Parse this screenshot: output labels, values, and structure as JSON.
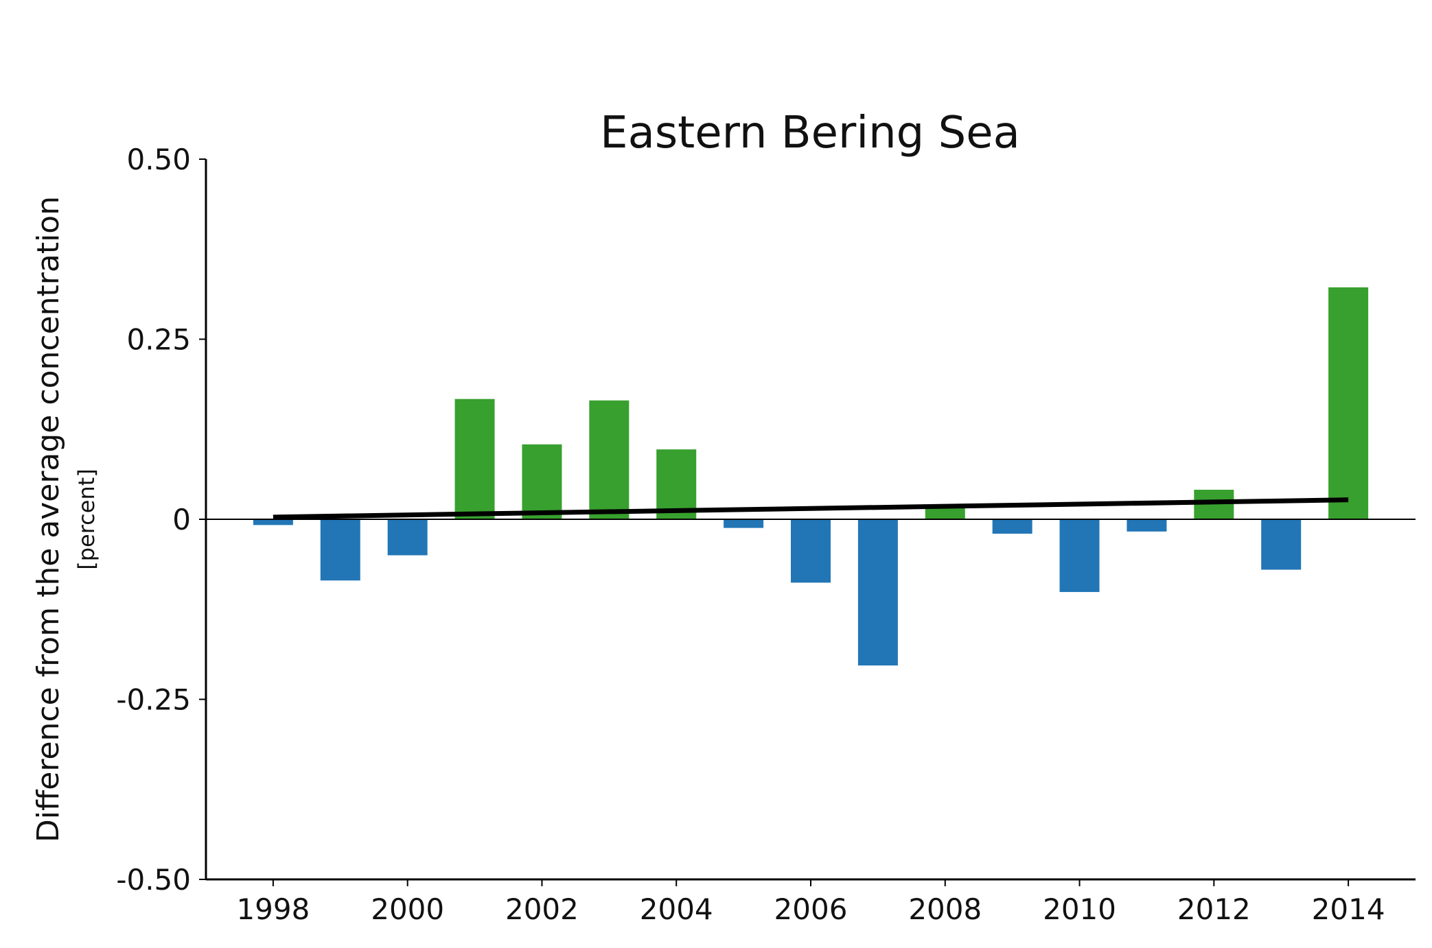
{
  "chart_data": {
    "type": "bar",
    "title": "Eastern Bering Sea",
    "ylabel": "Difference from the average concentration",
    "ylabel_unit": "[percent]",
    "xlabel": "",
    "ylim": [
      -0.5,
      0.5
    ],
    "yticks": [
      {
        "value": 0.5,
        "label": "0.50"
      },
      {
        "value": 0.25,
        "label": "0.25"
      },
      {
        "value": 0,
        "label": "0"
      },
      {
        "value": -0.25,
        "label": "-0.25"
      },
      {
        "value": -0.5,
        "label": "-0.50"
      }
    ],
    "xlim": [
      1997,
      2015
    ],
    "xticks": [
      1998,
      2000,
      2002,
      2004,
      2006,
      2008,
      2010,
      2012,
      2014
    ],
    "x": [
      1998,
      1999,
      2000,
      2001,
      2002,
      2003,
      2004,
      2005,
      2006,
      2007,
      2008,
      2009,
      2010,
      2011,
      2012,
      2013,
      2014
    ],
    "values": [
      -0.008,
      -0.085,
      -0.05,
      0.167,
      0.104,
      0.165,
      0.097,
      -0.012,
      -0.088,
      -0.203,
      0.018,
      -0.02,
      -0.101,
      -0.017,
      0.041,
      -0.07,
      0.322
    ],
    "colors": {
      "positive": "#38a02e",
      "negative": "#2276b6",
      "trend": "#000000",
      "axis": "#000000"
    },
    "trend_line": {
      "x": [
        1998,
        2014
      ],
      "y": [
        0.003,
        0.027
      ]
    },
    "grid": false,
    "legend": "none"
  }
}
